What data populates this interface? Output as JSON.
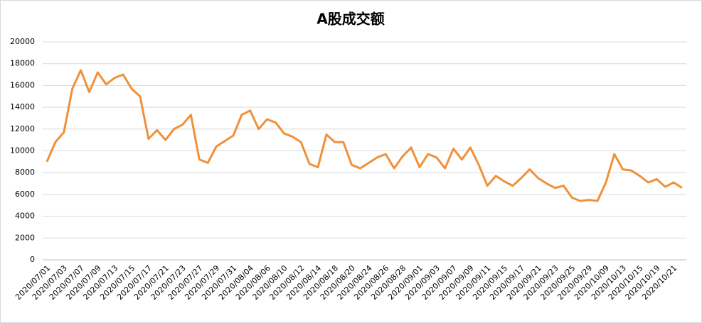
{
  "chart_data": {
    "type": "line",
    "title": "A股成交额",
    "categories": [
      "2020/07/01",
      null,
      "2020/07/03",
      null,
      "2020/07/07",
      null,
      "2020/07/09",
      null,
      "2020/07/13",
      null,
      "2020/07/15",
      null,
      "2020/07/17",
      null,
      "2020/07/21",
      null,
      "2020/07/23",
      null,
      "2020/07/27",
      null,
      "2020/07/29",
      null,
      "2020/07/31",
      null,
      "2020/08/04",
      null,
      "2020/08/06",
      null,
      "2020/08/10",
      null,
      "2020/08/12",
      null,
      "2020/08/14",
      null,
      "2020/08/18",
      null,
      "2020/08/20",
      null,
      "2020/08/24",
      null,
      "2020/08/26",
      null,
      "2020/08/28",
      null,
      "2020/09/01",
      null,
      "2020/09/03",
      null,
      "2020/09/07",
      null,
      "2020/09/09",
      null,
      "2020/09/11",
      null,
      "2020/09/15",
      null,
      "2020/09/17",
      null,
      "2020/09/21",
      null,
      "2020/09/23",
      null,
      "2020/09/25",
      null,
      "2020/09/29",
      null,
      "2020/10/09",
      null,
      "2020/10/13",
      null,
      "2020/10/15",
      null,
      "2020/10/19",
      null,
      "2020/10/21",
      null
    ],
    "values": [
      9000,
      10800,
      11700,
      15700,
      17400,
      15400,
      17200,
      16100,
      16700,
      17000,
      15700,
      15000,
      11100,
      11900,
      11000,
      12000,
      12400,
      13300,
      9200,
      8900,
      10400,
      10900,
      11400,
      13300,
      13700,
      12000,
      12900,
      12600,
      11600,
      11300,
      10800,
      8800,
      8500,
      11500,
      10800,
      10800,
      8700,
      8400,
      8900,
      9400,
      9700,
      8400,
      9500,
      10300,
      8500,
      9700,
      9400,
      8400,
      10200,
      9200,
      10300,
      8700,
      6800,
      7700,
      7200,
      6800,
      7500,
      8300,
      7500,
      7000,
      6600,
      6800,
      5700,
      5400,
      5500,
      5400,
      7100,
      9700,
      8300,
      8200,
      7700,
      7100,
      7400,
      6700,
      7100,
      6600
    ],
    "color": "#f0913a",
    "ylim": [
      0,
      20000
    ],
    "yticks": [
      0,
      2000,
      4000,
      6000,
      8000,
      10000,
      12000,
      14000,
      16000,
      18000,
      20000
    ],
    "grid": true
  }
}
